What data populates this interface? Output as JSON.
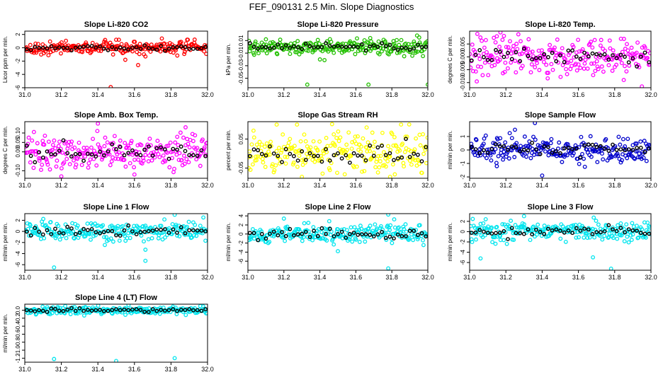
{
  "page_title": "FEF_090131  2.5 Min. Slope Diagnostics",
  "colors": {
    "red": "#ff0000",
    "green": "#22c000",
    "magenta": "#ff00ff",
    "yellow": "#ffff00",
    "blue": "#0000cc",
    "cyan": "#00e5ee",
    "black": "#000000"
  },
  "chart_data": [
    {
      "type": "scatter",
      "title": "Slope Li-820 CO2",
      "ylabel": "Licor ppm per min.",
      "xlim": [
        31.0,
        32.0
      ],
      "ylim": [
        -6,
        2.5
      ],
      "xticks": [
        "31.0",
        "31.2",
        "31.4",
        "31.6",
        "31.8",
        "32.0"
      ],
      "yticks": [
        "-6",
        "-4",
        "-2",
        "0",
        "2"
      ],
      "color_key": "red",
      "spread": 0.45,
      "outliers": [
        [
          31.47,
          -5.9
        ],
        [
          31.62,
          -2.6
        ],
        [
          31.55,
          -1.8
        ],
        [
          31.66,
          -1.3
        ],
        [
          31.75,
          1.4
        ],
        [
          31.5,
          1.2
        ]
      ]
    },
    {
      "type": "scatter",
      "title": "Slope Li-820 Pressure",
      "ylabel": "kPa per min.",
      "xlim": [
        31.0,
        32.0
      ],
      "ylim": [
        -0.065,
        0.025
      ],
      "xticks": [
        "31.0",
        "31.2",
        "31.4",
        "31.6",
        "31.8",
        "32.0"
      ],
      "yticks": [
        "-0.05",
        "-0.03",
        "-0.01",
        "0.01"
      ],
      "color_key": "green",
      "spread": 0.006,
      "outliers": [
        [
          31.33,
          -0.06
        ],
        [
          31.67,
          -0.06
        ],
        [
          32.0,
          -0.06
        ],
        [
          31.94,
          0.018
        ],
        [
          31.1,
          0.012
        ],
        [
          31.68,
          0.014
        ]
      ]
    },
    {
      "type": "scatter",
      "title": "Slope Li-820 Temp.",
      "ylabel": "degrees C per min.",
      "xlim": [
        31.0,
        32.0
      ],
      "ylim": [
        -0.012,
        0.01
      ],
      "xticks": [
        "31.0",
        "31.2",
        "31.4",
        "31.6",
        "31.8",
        "32.0"
      ],
      "yticks": [
        "-0.010",
        "-0.005",
        "0.000",
        "0.005"
      ],
      "color_key": "magenta",
      "spread": 0.0035,
      "outliers": [
        [
          31.17,
          0.0095
        ],
        [
          31.95,
          -0.0115
        ],
        [
          31.15,
          0.008
        ],
        [
          31.85,
          -0.009
        ]
      ]
    },
    {
      "type": "scatter",
      "title": "Slope Amb. Box Temp.",
      "ylabel": "degrees C per min.",
      "xlim": [
        31.0,
        32.0
      ],
      "ylim": [
        -0.14,
        0.16
      ],
      "xticks": [
        "31.0",
        "31.2",
        "31.4",
        "31.6",
        "31.8",
        "32.0"
      ],
      "yticks": [
        "-0.10",
        "0.00",
        "0.05",
        "0.10"
      ],
      "color_key": "magenta",
      "spread": 0.045,
      "outliers": [
        [
          31.4,
          0.15
        ],
        [
          31.88,
          0.13
        ],
        [
          31.2,
          -0.13
        ],
        [
          31.6,
          -0.12
        ]
      ]
    },
    {
      "type": "scatter",
      "title": "Slope Gas Stream RH",
      "ylabel": "percent per min.",
      "xlim": [
        31.0,
        32.0
      ],
      "ylim": [
        -0.085,
        0.11
      ],
      "xticks": [
        "31.0",
        "31.2",
        "31.4",
        "31.6",
        "31.8",
        "32.0"
      ],
      "yticks": [
        "-0.05",
        "0.05"
      ],
      "color_key": "yellow",
      "spread": 0.035,
      "outliers": [
        [
          31.16,
          0.1
        ],
        [
          31.66,
          0.09
        ],
        [
          31.3,
          -0.08
        ],
        [
          31.79,
          -0.08
        ]
      ]
    },
    {
      "type": "scatter",
      "title": "Slope Sample Flow",
      "ylabel": "ml/min per min.",
      "xlim": [
        31.0,
        32.0
      ],
      "ylim": [
        -2.1,
        2.1
      ],
      "xticks": [
        "31.0",
        "31.2",
        "31.4",
        "31.6",
        "31.8",
        "32.0"
      ],
      "yticks": [
        "-2",
        "-1",
        "0",
        "1"
      ],
      "color_key": "blue",
      "spread": 0.45,
      "outliers": [
        [
          31.36,
          2.0
        ],
        [
          31.4,
          -1.9
        ],
        [
          31.25,
          1.5
        ],
        [
          31.15,
          -1.2
        ]
      ]
    },
    {
      "type": "scatter",
      "title": "Slope Line 1 Flow",
      "ylabel": "ml/min per min.",
      "xlim": [
        31.0,
        32.0
      ],
      "ylim": [
        -7,
        3.2
      ],
      "xticks": [
        "31.0",
        "31.2",
        "31.4",
        "31.6",
        "31.8",
        "32.0"
      ],
      "yticks": [
        "-6",
        "-4",
        "-2",
        "0",
        "2"
      ],
      "color_key": "cyan",
      "spread": 0.8,
      "outliers": [
        [
          31.16,
          -6.5
        ],
        [
          31.66,
          -5.3
        ],
        [
          31.66,
          -3.3
        ],
        [
          31.82,
          3.0
        ]
      ]
    },
    {
      "type": "scatter",
      "title": "Slope Line 2 Flow",
      "ylabel": "ml/min per min.",
      "xlim": [
        31.0,
        32.0
      ],
      "ylim": [
        -8,
        4.5
      ],
      "xticks": [
        "31.0",
        "31.2",
        "31.4",
        "31.6",
        "31.8",
        "32.0"
      ],
      "yticks": [
        "-6",
        "-4",
        "-2",
        "0",
        "2",
        "4"
      ],
      "color_key": "cyan",
      "spread": 1.0,
      "outliers": [
        [
          31.78,
          -7.6
        ],
        [
          31.5,
          -3.8
        ],
        [
          31.78,
          4.3
        ],
        [
          31.2,
          3.4
        ]
      ]
    },
    {
      "type": "scatter",
      "title": "Slope Line 3 Flow",
      "ylabel": "ml/min per min.",
      "xlim": [
        31.0,
        32.0
      ],
      "ylim": [
        -7.5,
        3.5
      ],
      "xticks": [
        "31.0",
        "31.2",
        "31.4",
        "31.6",
        "31.8",
        "32.0"
      ],
      "yticks": [
        "-6",
        "-4",
        "-2",
        "0",
        "2"
      ],
      "color_key": "cyan",
      "spread": 0.9,
      "outliers": [
        [
          31.78,
          -7.2
        ],
        [
          31.06,
          -5.2
        ],
        [
          31.68,
          -5.0
        ],
        [
          31.3,
          3.0
        ]
      ]
    },
    {
      "type": "scatter",
      "title": "Slope Line 4 (LT) Flow",
      "ylabel": "ml/min per min.",
      "xlim": [
        31.0,
        32.0
      ],
      "ylim": [
        -1.3,
        0.15
      ],
      "xticks": [
        "31.0",
        "31.2",
        "31.4",
        "31.6",
        "31.8",
        "32.0"
      ],
      "yticks": [
        "-1.2",
        "-1.0",
        "-0.8",
        "-0.6",
        "-0.4",
        "-0.2",
        "0.0"
      ],
      "color_key": "cyan",
      "spread": 0.05,
      "outliers": [
        [
          31.16,
          -1.22
        ],
        [
          31.5,
          -1.27
        ],
        [
          31.82,
          -1.2
        ]
      ]
    }
  ]
}
